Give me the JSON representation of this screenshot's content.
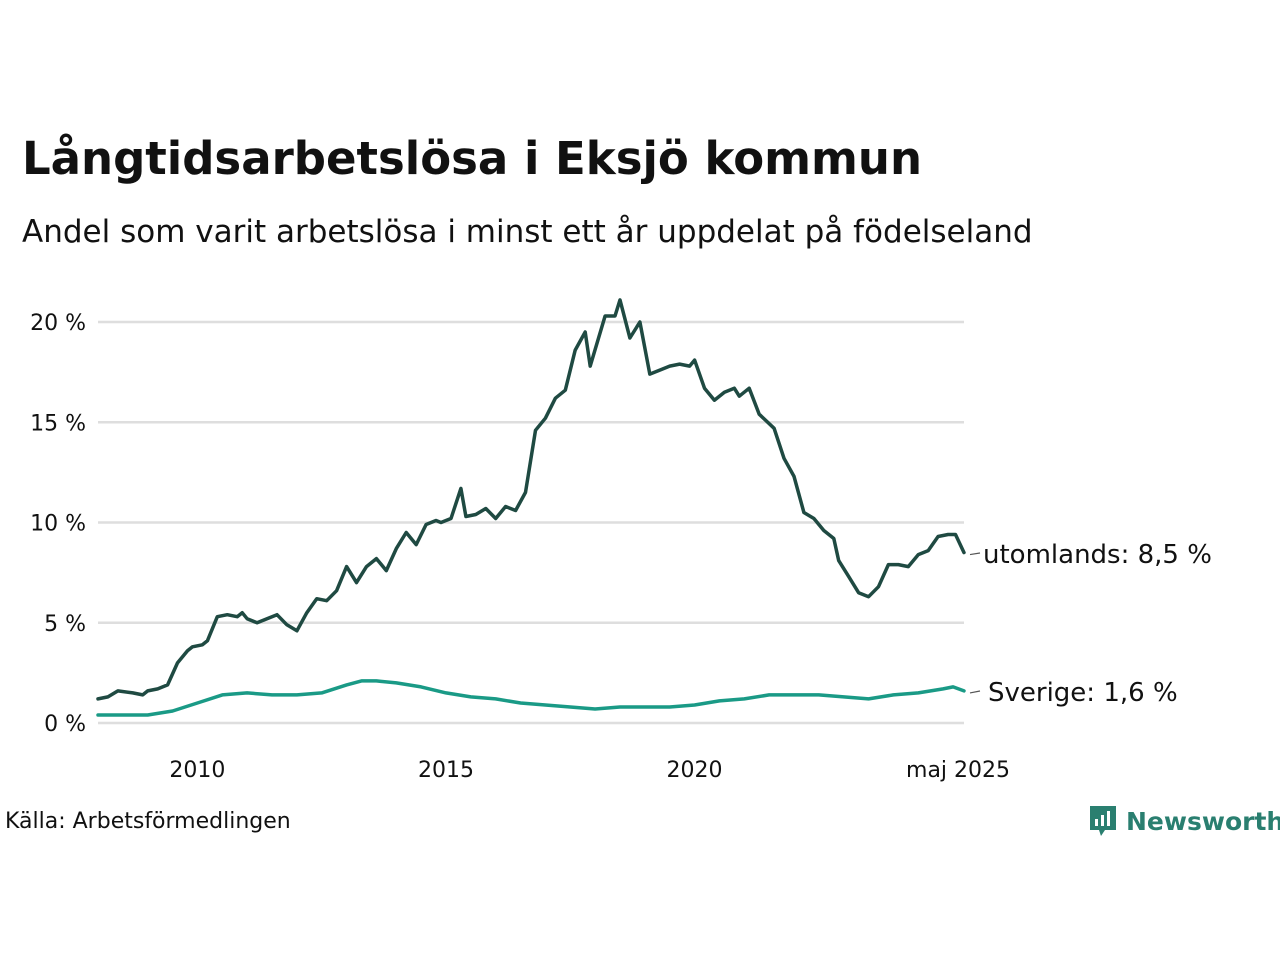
{
  "title": "Långtidsarbetslösa i Eksjö kommun",
  "subtitle": "Andel som varit arbetslösa i minst ett år uppdelat på födelseland",
  "source": "Källa: Arbetsförmedlingen",
  "logo_text": "Newsworthy",
  "colors": {
    "utomlands": "#1f4a42",
    "sverige": "#1a9a86",
    "grid": "#dedede",
    "logo": "#2a7f70"
  },
  "chart_data": {
    "type": "line",
    "title": "",
    "xlabel": "",
    "ylabel": "",
    "x_range": [
      2008.0,
      2025.42
    ],
    "ylim": [
      0,
      21
    ],
    "y_ticks": [
      {
        "value": 0,
        "label": "0 %"
      },
      {
        "value": 5,
        "label": "5 %"
      },
      {
        "value": 10,
        "label": "10 %"
      },
      {
        "value": 15,
        "label": "15 %"
      },
      {
        "value": 20,
        "label": "20 %"
      }
    ],
    "x_ticks": [
      {
        "value": 2010,
        "label": "2010"
      },
      {
        "value": 2015,
        "label": "2015"
      },
      {
        "value": 2020,
        "label": "2020"
      },
      {
        "value": 2025.3,
        "label": "maj 2025"
      }
    ],
    "grid": true,
    "legend": "end-labels",
    "series": [
      {
        "name": "utomlands",
        "end_label": "utomlands: 8,5 %",
        "color": "#1f4a42",
        "x": [
          2008.0,
          2008.2,
          2008.4,
          2008.7,
          2008.9,
          2009.0,
          2009.2,
          2009.4,
          2009.6,
          2009.8,
          2009.9,
          2010.1,
          2010.2,
          2010.4,
          2010.6,
          2010.8,
          2010.9,
          2011.0,
          2011.2,
          2011.4,
          2011.6,
          2011.8,
          2012.0,
          2012.2,
          2012.4,
          2012.6,
          2012.8,
          2013.0,
          2013.2,
          2013.4,
          2013.6,
          2013.8,
          2014.0,
          2014.2,
          2014.4,
          2014.6,
          2014.8,
          2014.9,
          2015.1,
          2015.3,
          2015.4,
          2015.6,
          2015.8,
          2016.0,
          2016.2,
          2016.4,
          2016.6,
          2016.8,
          2017.0,
          2017.2,
          2017.4,
          2017.6,
          2017.8,
          2017.9,
          2018.2,
          2018.4,
          2018.5,
          2018.7,
          2018.9,
          2019.1,
          2019.3,
          2019.5,
          2019.7,
          2019.9,
          2020.0,
          2020.2,
          2020.4,
          2020.6,
          2020.8,
          2020.9,
          2021.1,
          2021.3,
          2021.6,
          2021.8,
          2022.0,
          2022.2,
          2022.4,
          2022.6,
          2022.8,
          2022.9,
          2023.1,
          2023.3,
          2023.5,
          2023.7,
          2023.9,
          2024.1,
          2024.3,
          2024.5,
          2024.7,
          2024.9,
          2025.1,
          2025.25,
          2025.42
        ],
        "values": [
          1.2,
          1.3,
          1.6,
          1.5,
          1.4,
          1.6,
          1.7,
          1.9,
          3.0,
          3.6,
          3.8,
          3.9,
          4.1,
          5.3,
          5.4,
          5.3,
          5.5,
          5.2,
          5.0,
          5.2,
          5.4,
          4.9,
          4.6,
          5.5,
          6.2,
          6.1,
          6.6,
          7.8,
          7.0,
          7.8,
          8.2,
          7.6,
          8.7,
          9.5,
          8.9,
          9.9,
          10.1,
          10.0,
          10.2,
          11.7,
          10.3,
          10.4,
          10.7,
          10.2,
          10.8,
          10.6,
          11.5,
          14.6,
          15.2,
          16.2,
          16.6,
          18.6,
          19.5,
          17.8,
          20.3,
          20.3,
          21.1,
          19.2,
          20.0,
          17.4,
          17.6,
          17.8,
          17.9,
          17.8,
          18.1,
          16.7,
          16.1,
          16.5,
          16.7,
          16.3,
          16.7,
          15.4,
          14.7,
          13.2,
          12.3,
          10.5,
          10.2,
          9.6,
          9.2,
          8.1,
          7.3,
          6.5,
          6.3,
          6.8,
          7.9,
          7.9,
          7.8,
          8.4,
          8.6,
          9.3,
          9.4,
          9.4,
          8.5
        ]
      },
      {
        "name": "Sverige",
        "end_label": "Sverige: 1,6 %",
        "color": "#1a9a86",
        "x": [
          2008.0,
          2008.5,
          2009.0,
          2009.5,
          2010.0,
          2010.5,
          2011.0,
          2011.5,
          2012.0,
          2012.5,
          2013.0,
          2013.3,
          2013.6,
          2014.0,
          2014.5,
          2015.0,
          2015.5,
          2016.0,
          2016.5,
          2017.0,
          2017.5,
          2018.0,
          2018.5,
          2019.0,
          2019.5,
          2020.0,
          2020.5,
          2021.0,
          2021.5,
          2022.0,
          2022.5,
          2023.0,
          2023.5,
          2024.0,
          2024.5,
          2025.0,
          2025.2,
          2025.42
        ],
        "values": [
          0.4,
          0.4,
          0.4,
          0.6,
          1.0,
          1.4,
          1.5,
          1.4,
          1.4,
          1.5,
          1.9,
          2.1,
          2.1,
          2.0,
          1.8,
          1.5,
          1.3,
          1.2,
          1.0,
          0.9,
          0.8,
          0.7,
          0.8,
          0.8,
          0.8,
          0.9,
          1.1,
          1.2,
          1.4,
          1.4,
          1.4,
          1.3,
          1.2,
          1.4,
          1.5,
          1.7,
          1.8,
          1.6
        ]
      }
    ]
  }
}
